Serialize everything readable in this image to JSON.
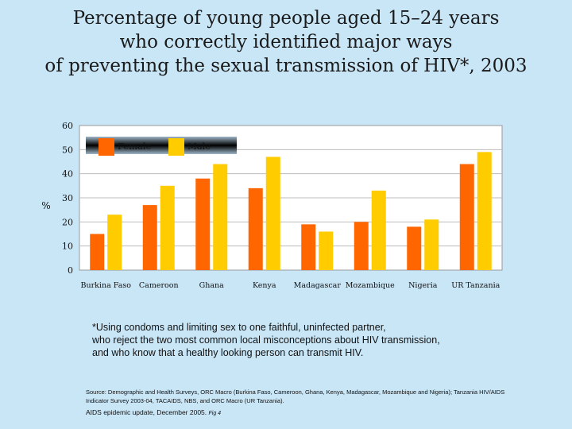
{
  "title_lines": [
    "Percentage of young people aged 15–24 years",
    "who correctly identified major ways",
    "of preventing the sexual transmission of HIV*, 2003"
  ],
  "chart_data": {
    "type": "bar",
    "categories": [
      "Burkina Faso",
      "Cameroon",
      "Ghana",
      "Kenya",
      "Madagascar",
      "Mozambique",
      "Nigeria",
      "UR Tanzania"
    ],
    "series": [
      {
        "name": "Female",
        "color": "#ff6600",
        "values": [
          15,
          27,
          38,
          34,
          19,
          20,
          18,
          44
        ]
      },
      {
        "name": "Male",
        "color": "#ffcc00",
        "values": [
          23,
          35,
          44,
          47,
          16,
          33,
          21,
          49
        ]
      }
    ],
    "ylabel": "%",
    "ylim": [
      0,
      60
    ],
    "yticks": [
      0,
      10,
      20,
      30,
      40,
      50,
      60
    ],
    "grid": true,
    "legend_position": "top-left"
  },
  "footnote_lines": [
    "*Using condoms and limiting sex to one faithful, uninfected partner,",
    "who reject the two most common local misconceptions about HIV transmission,",
    "and who know that a healthy looking person can transmit HIV."
  ],
  "source_lines": [
    "Source: Demographic and Health Surveys, ORC Macro (Burkina Faso, Cameroon, Ghana, Kenya, Madagascar, Mozambique and Nigeria); Tanzania HIV/AIDS",
    "Indicator Survey 2003-04, TACAIDS, NBS, and ORC Macro (UR Tanzania)."
  ],
  "update_text": "AIDS epidemic update, December 2005",
  "figure_ref": "Fig 4"
}
